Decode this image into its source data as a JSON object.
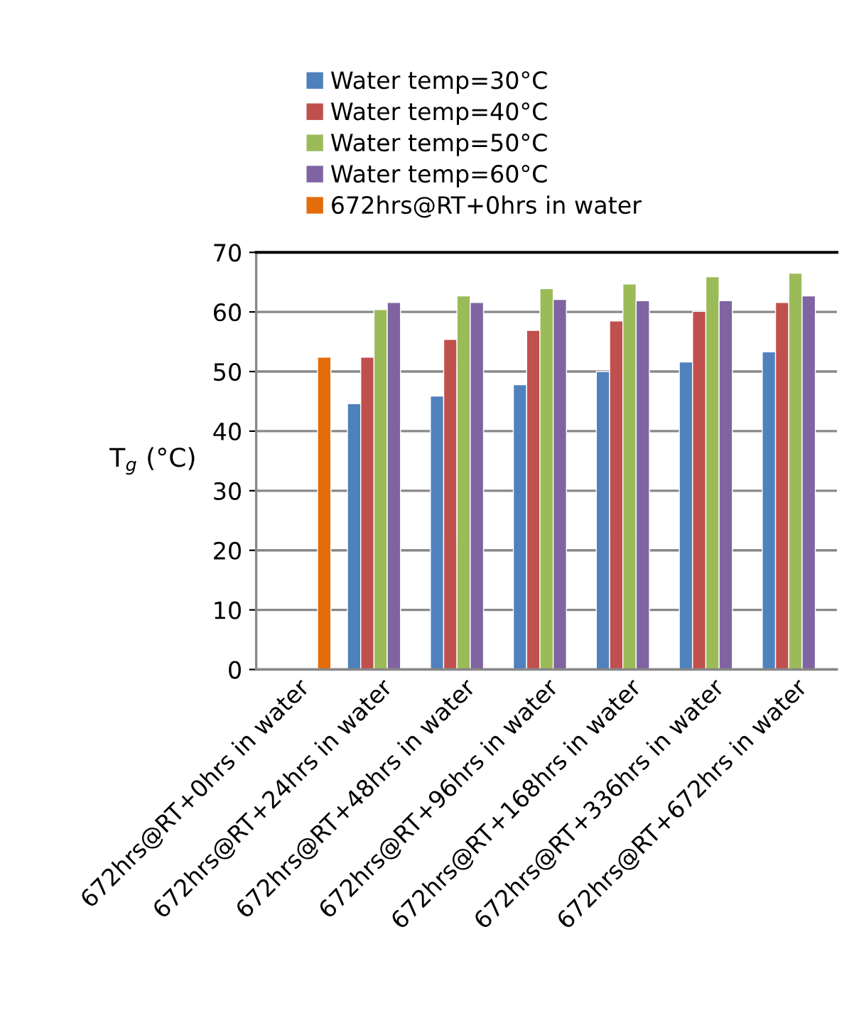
{
  "chart_data": {
    "type": "bar",
    "ylabel": "T$_{g}$ (°C)",
    "categories": [
      "672hrs@RT+0hrs in water",
      "672hrs@RT+24hrs in water",
      "672hrs@RT+48hrs in water",
      "672hrs@RT+96hrs in water",
      "672hrs@RT+168hrs in water",
      "672hrs@RT+336hrs in water",
      "672hrs@RT+672hrs in water"
    ],
    "series": [
      {
        "name": "Water temp=30°C",
        "color": "#4f81bd",
        "values": [
          null,
          44.6,
          45.9,
          47.8,
          50.0,
          51.6,
          53.3
        ]
      },
      {
        "name": "Water temp=40°C",
        "color": "#c0504d",
        "values": [
          null,
          52.4,
          55.4,
          56.9,
          58.5,
          60.1,
          61.6
        ]
      },
      {
        "name": "Water temp=50°C",
        "color": "#9bbb59",
        "values": [
          null,
          60.4,
          62.7,
          63.9,
          64.7,
          65.9,
          66.5
        ]
      },
      {
        "name": "Water temp=60°C",
        "color": "#8064a2",
        "values": [
          null,
          61.6,
          61.6,
          62.1,
          61.9,
          61.9,
          62.7
        ]
      },
      {
        "name": "672hrs@RT+0hrs in water",
        "color": "#e46c0a",
        "values": [
          52.4,
          null,
          null,
          null,
          null,
          null,
          null
        ]
      }
    ],
    "ylim": [
      0,
      70
    ],
    "yticks": [
      0,
      10,
      20,
      30,
      40,
      50,
      60,
      70
    ],
    "grid": "y",
    "legend": "top"
  }
}
